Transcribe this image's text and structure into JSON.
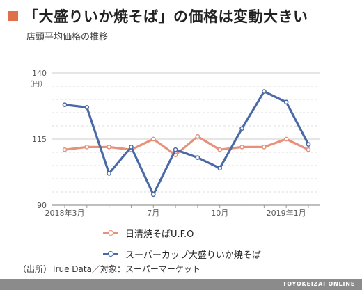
{
  "title": "「大盛りいか焼そば」の価格は変動大きい",
  "subtitle": "店頭平均価格の推移",
  "source": "（出所）True Data／対象：スーパーマーケット",
  "brand": "TOYOKEIZAI ONLINE",
  "colors": {
    "accent": "#e0704a",
    "ufo": "#e8917a",
    "cup": "#4a6aa6",
    "grid": "#dcdcdc",
    "axis": "#999999"
  },
  "chart_data": {
    "type": "line",
    "unit": "（円）",
    "ylim": [
      90,
      140
    ],
    "yticks": [
      90,
      115,
      140
    ],
    "x": [
      "2018-03",
      "2018-04",
      "2018-05",
      "2018-06",
      "2018-07",
      "2018-08",
      "2018-09",
      "2018-10",
      "2018-11",
      "2018-12",
      "2019-01",
      "2019-02"
    ],
    "xtick_labels": [
      {
        "index": 0,
        "label": "2018年3月"
      },
      {
        "index": 4,
        "label": "7月"
      },
      {
        "index": 7,
        "label": "10月"
      },
      {
        "index": 10,
        "label": "2019年1月"
      }
    ],
    "grid": true,
    "legend_position": "bottom",
    "series": [
      {
        "name": "日清焼そばU.F.O",
        "color": "#e8917a",
        "values": [
          111,
          112,
          112,
          111,
          115,
          109,
          116,
          111,
          112,
          112,
          115,
          111
        ]
      },
      {
        "name": "スーパーカップ大盛りいか焼そば",
        "color": "#4a6aa6",
        "values": [
          128,
          127,
          102,
          112,
          94,
          111,
          108,
          104,
          119,
          133,
          129,
          113
        ]
      }
    ]
  }
}
